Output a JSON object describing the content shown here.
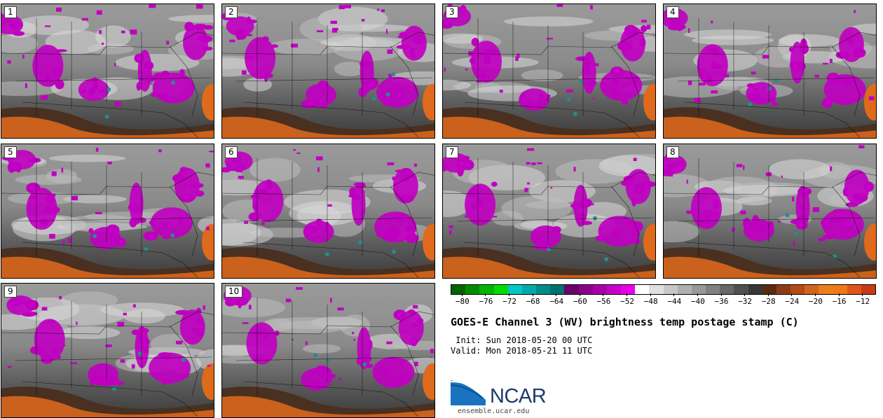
{
  "panels": [
    {
      "label": "1"
    },
    {
      "label": "2"
    },
    {
      "label": "3"
    },
    {
      "label": "4"
    },
    {
      "label": "5"
    },
    {
      "label": "6"
    },
    {
      "label": "7"
    },
    {
      "label": "8"
    },
    {
      "label": "9"
    },
    {
      "label": "10"
    }
  ],
  "colorbar": {
    "colors": [
      "#006400",
      "#008c00",
      "#00b400",
      "#00dc00",
      "#00c8c8",
      "#00aaaa",
      "#008b8b",
      "#007070",
      "#6a006a",
      "#8c008c",
      "#aa00aa",
      "#c800c8",
      "#e800e8",
      "#ffffff",
      "#e0e0e0",
      "#c8c8c8",
      "#b0b0b0",
      "#989898",
      "#808080",
      "#686868",
      "#505050",
      "#383838",
      "#5a2a14",
      "#8c3c14",
      "#b44a14",
      "#d2641e",
      "#ee7d1e",
      "#f07818",
      "#e0561a",
      "#c83c14"
    ],
    "tick_labels": [
      "−80",
      "−76",
      "−72",
      "−68",
      "−64",
      "−60",
      "−56",
      "−52",
      "−48",
      "−44",
      "−40",
      "−36",
      "−32",
      "−28",
      "−24",
      "−20",
      "−16",
      "−12"
    ],
    "tick_values": [
      -80,
      -76,
      -72,
      -68,
      -64,
      -60,
      -56,
      -52,
      -48,
      -44,
      -40,
      -36,
      -32,
      -28,
      -24,
      -20,
      -16,
      -12
    ],
    "range": [
      -82,
      -10
    ]
  },
  "title": "GOES-E Channel 3 (WV) brightness temp postage stamp (C)",
  "init": " Init: Sun 2018-05-20 00 UTC",
  "valid": "Valid: Mon 2018-05-21 11 UTC",
  "logo": {
    "text": "NCAR",
    "url": "ensemble.ucar.edu"
  },
  "colors": {
    "magenta": "#c000c0",
    "orange": "#e06a1c",
    "teal": "#2a8a8a"
  }
}
